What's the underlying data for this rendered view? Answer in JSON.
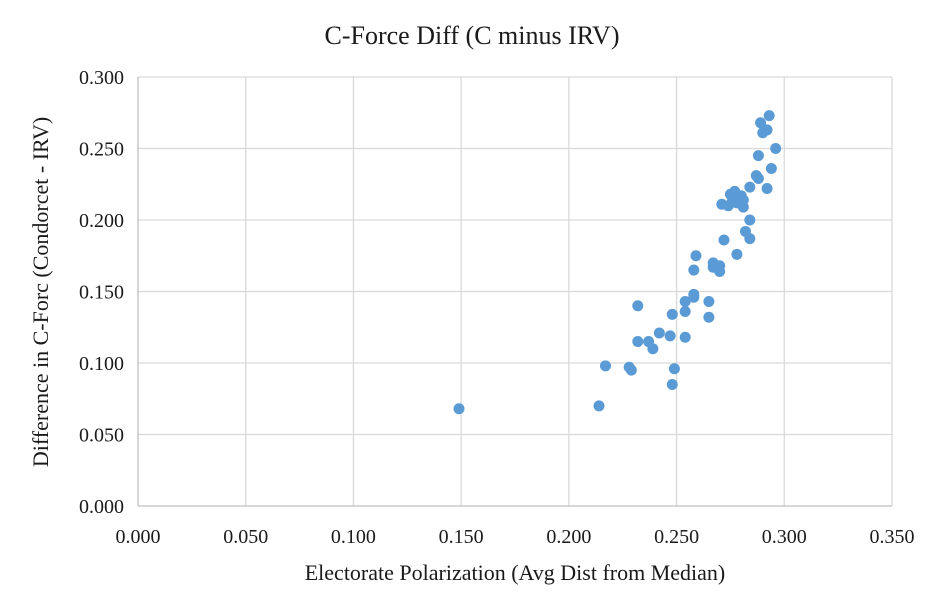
{
  "chart_data": {
    "type": "scatter",
    "title": "C-Force Diff (C minus IRV)",
    "xlabel": "Electorate Polarization (Avg Dist from Median)",
    "ylabel": "Difference in C-Forc (Condorcet - IRV)",
    "xlim": [
      0,
      0.35
    ],
    "ylim": [
      0,
      0.3
    ],
    "x_ticks": [
      "0.000",
      "0.050",
      "0.100",
      "0.150",
      "0.200",
      "0.250",
      "0.300",
      "0.350"
    ],
    "y_ticks": [
      "0.000",
      "0.050",
      "0.100",
      "0.150",
      "0.200",
      "0.250",
      "0.300"
    ],
    "grid": true,
    "legend": "none",
    "marker_color": "#5B9BD5",
    "series": [
      {
        "points": [
          [
            0.149,
            0.068
          ],
          [
            0.214,
            0.07
          ],
          [
            0.217,
            0.098
          ],
          [
            0.228,
            0.097
          ],
          [
            0.229,
            0.095
          ],
          [
            0.232,
            0.14
          ],
          [
            0.232,
            0.115
          ],
          [
            0.237,
            0.115
          ],
          [
            0.239,
            0.11
          ],
          [
            0.242,
            0.121
          ],
          [
            0.247,
            0.119
          ],
          [
            0.248,
            0.134
          ],
          [
            0.248,
            0.085
          ],
          [
            0.249,
            0.096
          ],
          [
            0.254,
            0.143
          ],
          [
            0.254,
            0.136
          ],
          [
            0.254,
            0.118
          ],
          [
            0.258,
            0.148
          ],
          [
            0.258,
            0.146
          ],
          [
            0.258,
            0.165
          ],
          [
            0.259,
            0.175
          ],
          [
            0.265,
            0.143
          ],
          [
            0.265,
            0.132
          ],
          [
            0.267,
            0.17
          ],
          [
            0.267,
            0.167
          ],
          [
            0.27,
            0.168
          ],
          [
            0.27,
            0.164
          ],
          [
            0.271,
            0.211
          ],
          [
            0.272,
            0.186
          ],
          [
            0.274,
            0.21
          ],
          [
            0.275,
            0.218
          ],
          [
            0.276,
            0.214
          ],
          [
            0.277,
            0.22
          ],
          [
            0.277,
            0.215
          ],
          [
            0.278,
            0.176
          ],
          [
            0.278,
            0.212
          ],
          [
            0.28,
            0.217
          ],
          [
            0.281,
            0.209
          ],
          [
            0.281,
            0.214
          ],
          [
            0.282,
            0.192
          ],
          [
            0.284,
            0.187
          ],
          [
            0.284,
            0.2
          ],
          [
            0.284,
            0.223
          ],
          [
            0.287,
            0.231
          ],
          [
            0.288,
            0.245
          ],
          [
            0.288,
            0.229
          ],
          [
            0.289,
            0.268
          ],
          [
            0.29,
            0.261
          ],
          [
            0.292,
            0.263
          ],
          [
            0.292,
            0.222
          ],
          [
            0.293,
            0.273
          ],
          [
            0.294,
            0.236
          ],
          [
            0.296,
            0.25
          ]
        ]
      }
    ]
  }
}
